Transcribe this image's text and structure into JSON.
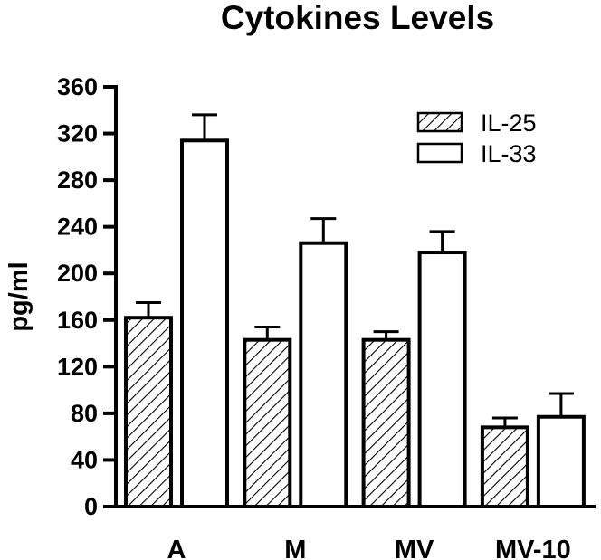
{
  "chart_data": {
    "type": "bar",
    "title": "Cytokines Levels",
    "xlabel": "",
    "ylabel": "pg/ml",
    "ylim": [
      0,
      360
    ],
    "yticks": [
      0,
      40,
      80,
      120,
      160,
      200,
      240,
      280,
      320,
      360
    ],
    "categories": [
      "A",
      "M",
      "MV",
      "MV-10"
    ],
    "series": [
      {
        "name": "IL-25",
        "pattern": "hatched",
        "color": "#000000",
        "values": [
          162,
          143,
          143,
          68
        ],
        "errors": [
          13,
          11,
          7,
          8
        ]
      },
      {
        "name": "IL-33",
        "pattern": "open",
        "color": "#000000",
        "values": [
          314,
          226,
          218,
          77
        ],
        "errors": [
          22,
          21,
          18,
          20
        ]
      }
    ],
    "legend_position": "top-right",
    "grid": false
  }
}
